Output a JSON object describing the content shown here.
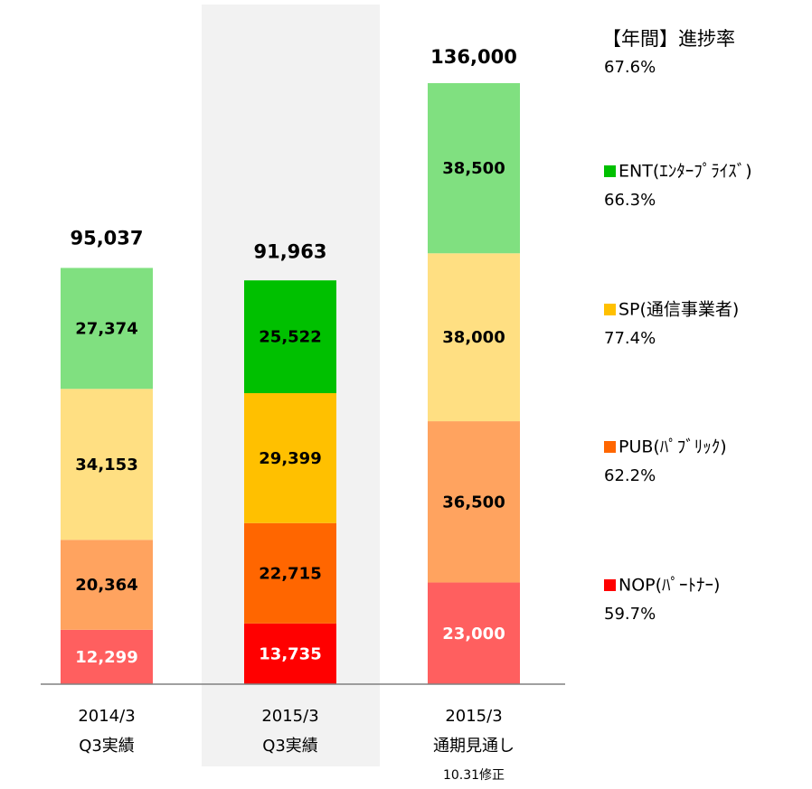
{
  "chart_data": {
    "type": "stacked_bar",
    "categories": [
      [
        "2014/3",
        "Q3実績"
      ],
      [
        "2015/3",
        "Q3実績"
      ],
      [
        "2015/3",
        "通期見通し"
      ]
    ],
    "category_notes": [
      null,
      null,
      "10.31修正"
    ],
    "highlight": 1,
    "series": [
      {
        "name": "NOP(ﾊﾟｰﾄﾅｰ)",
        "color": "#ff0000",
        "colors": [
          "#ff5f5f",
          "#ff0000",
          "#ff5f5f"
        ],
        "label_color": "#ffffff",
        "values": [
          12299,
          13735,
          23000
        ],
        "value_labels": [
          "12,299",
          "13,735",
          "23,000"
        ],
        "rate": {
          "value": 59.7,
          "label": "59.7%"
        }
      },
      {
        "name": "PUB(ﾊﾟﾌﾞﾘｯｸ)",
        "color": "#ff6600",
        "colors": [
          "#ffa35f",
          "#ff6600",
          "#ffa35f"
        ],
        "label_color": "#000000",
        "values": [
          20364,
          22715,
          36500
        ],
        "value_labels": [
          "20,364",
          "22,715",
          "36,500"
        ],
        "rate": {
          "value": 62.2,
          "label": "62.2%"
        }
      },
      {
        "name": "SP(通信事業者)",
        "color": "#ffc000",
        "colors": [
          "#ffdf82",
          "#ffc000",
          "#ffdf82"
        ],
        "label_color": "#000000",
        "values": [
          34153,
          29399,
          38000
        ],
        "value_labels": [
          "34,153",
          "29,399",
          "38,000"
        ],
        "rate": {
          "value": 77.4,
          "label": "77.4%"
        }
      },
      {
        "name": "ENT(ｴﾝﾀｰﾌﾟﾗｲｽﾞ)",
        "color": "#00c000",
        "colors": [
          "#80e080",
          "#00c000",
          "#80e080"
        ],
        "label_color": "#000000",
        "values": [
          27374,
          25522,
          38500
        ],
        "value_labels": [
          "27,374",
          "25,522",
          "38,500"
        ],
        "rate": {
          "value": 66.3,
          "label": "66.3%"
        }
      }
    ],
    "totals": [
      95037,
      91963,
      136000
    ],
    "total_labels": [
      "95,037",
      "91,963",
      "136,000"
    ],
    "progress_title": "【年間】進捗率",
    "progress": {
      "value": 67.6,
      "label": "67.6%"
    }
  }
}
